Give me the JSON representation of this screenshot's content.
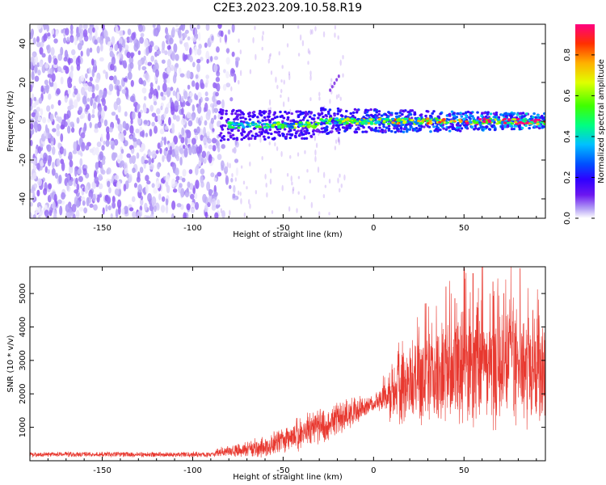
{
  "figure_title": "C2E3.2023.209.10.58.R19",
  "colors": {
    "snr_line": "#e8382f",
    "weak_point": "#b48cf0",
    "strong_point": "#6a0de0",
    "axis": "#000000"
  },
  "chart_data": [
    {
      "type": "heatmap",
      "title": "",
      "xlabel": "Height of straight line (km)",
      "ylabel": "Frequency (Hz)",
      "xlim": [
        -190,
        95
      ],
      "ylim": [
        -50,
        50
      ],
      "x_ticks": [
        "-150",
        "-100",
        "-50",
        "0",
        "50"
      ],
      "x_tick_values": [
        -150,
        -100,
        -50,
        0,
        50
      ],
      "y_ticks": [
        "-40",
        "-20",
        "0",
        "20",
        "40"
      ],
      "y_tick_values": [
        -40,
        -20,
        0,
        20,
        40
      ],
      "colorbar": {
        "label": "Normalized spectral amplitude",
        "range": [
          0.0,
          0.95
        ],
        "ticks": [
          "0.0",
          "0.2",
          "0.4",
          "0.6",
          "0.8"
        ],
        "tick_values": [
          0.0,
          0.2,
          0.4,
          0.6,
          0.8
        ],
        "colormap": [
          "#ffffff",
          "#b39ff5",
          "#6c17f0",
          "#2f00ff",
          "#0050ff",
          "#00c0ff",
          "#00ff80",
          "#40ff00",
          "#e0ff00",
          "#ffb000",
          "#ff3000",
          "#ff0080"
        ]
      },
      "signal_band": {
        "noise_region_x": [
          -190,
          -85
        ],
        "signal_x": [
          -85,
          95
        ],
        "signal_freq_hz": 0,
        "width_hz": [
          -8,
          8
        ],
        "noise_amplitude": 0.2,
        "signal_amplitude_range": [
          0.3,
          0.95
        ]
      },
      "annotations": [
        {
          "x": -22,
          "y": 20,
          "note": "small isolated streak"
        }
      ]
    },
    {
      "type": "line",
      "title": "",
      "xlabel": "Height of straight line (km)",
      "ylabel": "SNR (10 * v/v)",
      "xlim": [
        -190,
        95
      ],
      "ylim": [
        0,
        5800
      ],
      "x_ticks": [
        "-150",
        "-100",
        "-50",
        "0",
        "50"
      ],
      "x_tick_values": [
        -150,
        -100,
        -50,
        0,
        50
      ],
      "y_ticks": [
        "1000",
        "2000",
        "3000",
        "4000",
        "5000"
      ],
      "y_tick_values": [
        1000,
        2000,
        3000,
        4000,
        5000
      ],
      "series": [
        {
          "name": "SNR",
          "x_knots": [
            -190,
            -90,
            -85,
            -60,
            -50,
            -40,
            -30,
            -20,
            -10,
            0,
            5,
            10,
            20,
            30,
            40,
            50,
            60,
            70,
            80,
            90,
            95
          ],
          "y_knots": [
            190,
            190,
            260,
            420,
            620,
            820,
            1050,
            1250,
            1480,
            1700,
            1850,
            2100,
            2300,
            2550,
            2700,
            2850,
            2800,
            2750,
            2750,
            2650,
            2500
          ],
          "spread": [
            80,
            80,
            140,
            300,
            400,
            500,
            550,
            550,
            400,
            250,
            400,
            900,
            1200,
            1400,
            1600,
            1800,
            1800,
            1700,
            1800,
            1600,
            1500
          ],
          "peaks": [
            [
              50,
              5750
            ],
            [
              81,
              5750
            ],
            [
              55,
              5600
            ],
            [
              29,
              4700
            ],
            [
              40,
              5200
            ],
            [
              66,
              5350
            ],
            [
              45,
              4850
            ],
            [
              88,
              4500
            ],
            [
              72,
              5000
            ]
          ]
        }
      ]
    }
  ]
}
